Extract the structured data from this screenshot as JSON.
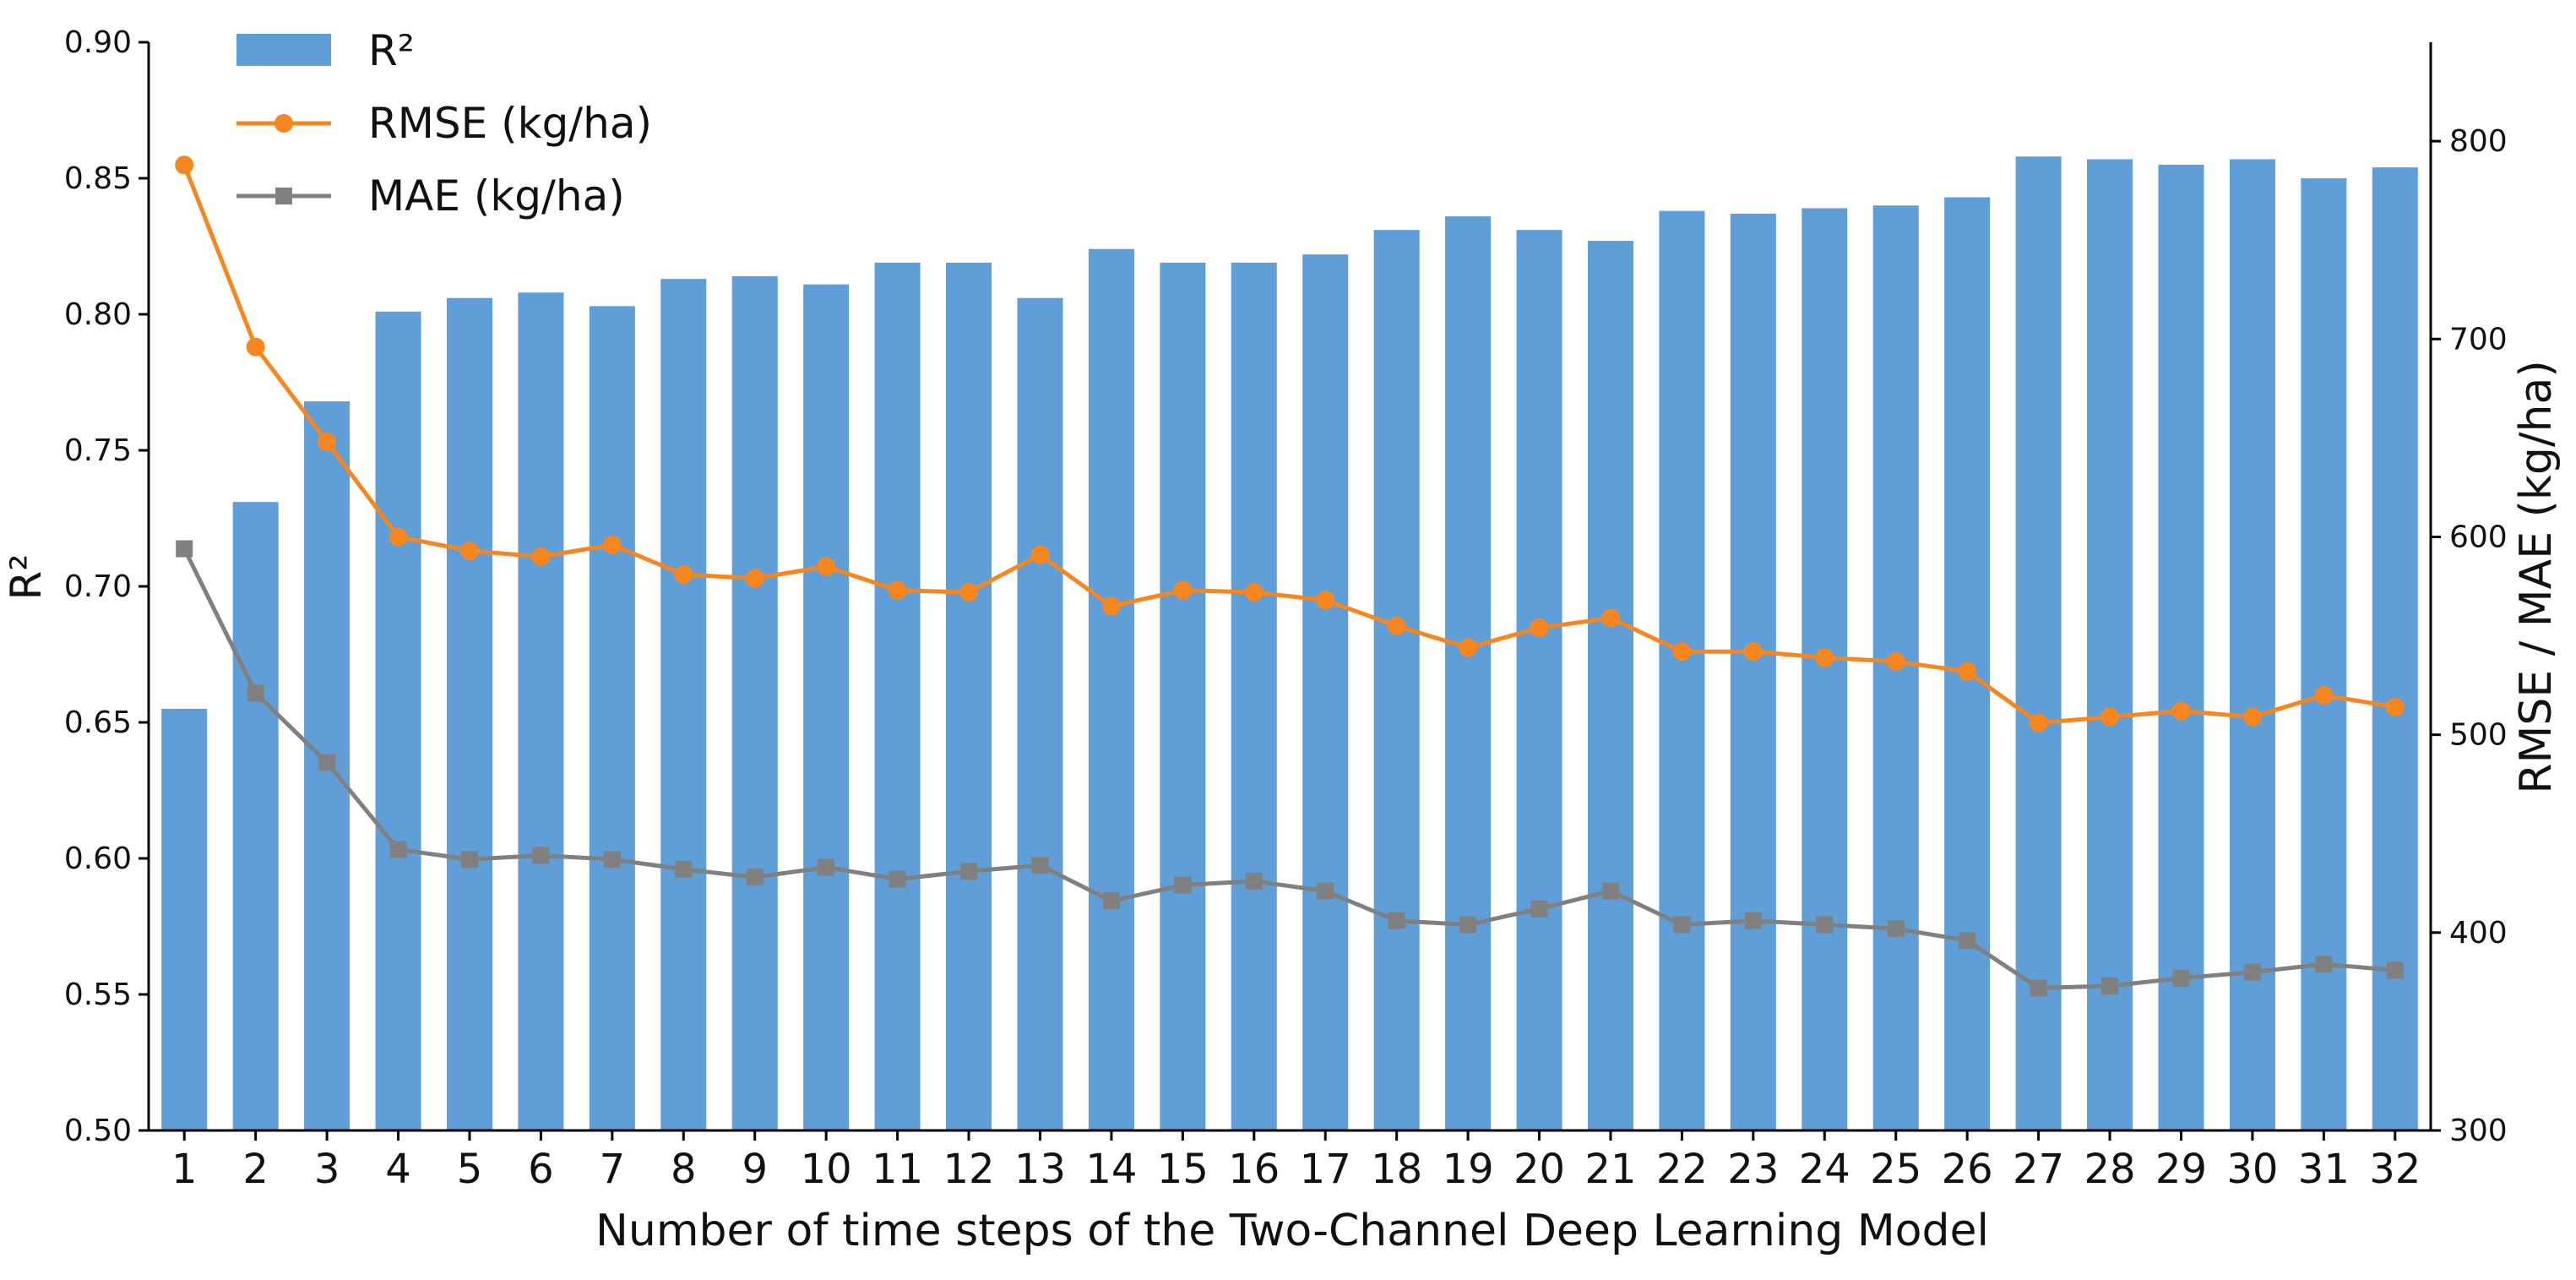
{
  "chart_data": {
    "type": "bar",
    "xlabel": "Number of time steps of the Two-Channel Deep Learning Model",
    "ylabel_left": "R²",
    "ylabel_right": "RMSE / MAE (kg/ha)",
    "ylim_left": [
      0.5,
      0.9
    ],
    "yticks_left": [
      "0.50",
      "0.55",
      "0.60",
      "0.65",
      "0.70",
      "0.75",
      "0.80",
      "0.85",
      "0.90"
    ],
    "ylim_right": [
      300,
      850
    ],
    "yticks_right": [
      "300",
      "400",
      "500",
      "600",
      "700",
      "800"
    ],
    "categories": [
      "1",
      "2",
      "3",
      "4",
      "5",
      "6",
      "7",
      "8",
      "9",
      "10",
      "11",
      "12",
      "13",
      "14",
      "15",
      "16",
      "17",
      "18",
      "19",
      "20",
      "21",
      "22",
      "23",
      "24",
      "25",
      "26",
      "27",
      "28",
      "29",
      "30",
      "31",
      "32"
    ],
    "grid": false,
    "legend_position": "top-left",
    "series": [
      {
        "name": "R²",
        "type": "bar",
        "axis": "left",
        "color": "#5f9ed7",
        "values": [
          0.655,
          0.731,
          0.768,
          0.801,
          0.806,
          0.808,
          0.803,
          0.813,
          0.814,
          0.811,
          0.819,
          0.819,
          0.806,
          0.824,
          0.819,
          0.819,
          0.822,
          0.831,
          0.836,
          0.831,
          0.827,
          0.838,
          0.837,
          0.839,
          0.84,
          0.843,
          0.858,
          0.857,
          0.855,
          0.857,
          0.85,
          0.854
        ]
      },
      {
        "name": "RMSE (kg/ha)",
        "type": "line",
        "axis": "right",
        "marker": "circle",
        "color": "#f58620",
        "values": [
          788,
          696,
          648,
          600,
          593,
          590,
          596,
          581,
          579,
          585,
          573,
          572,
          591,
          565,
          573,
          572,
          568,
          555,
          544,
          554,
          559,
          542,
          542,
          539,
          537,
          532,
          506,
          509,
          512,
          509,
          520,
          514
        ]
      },
      {
        "name": "MAE (kg/ha)",
        "type": "line",
        "axis": "right",
        "marker": "square",
        "color": "#808080",
        "values": [
          594,
          521,
          486,
          442,
          437,
          439,
          437,
          432,
          428,
          433,
          427,
          431,
          434,
          416,
          424,
          426,
          421,
          406,
          404,
          412,
          421,
          404,
          406,
          404,
          402,
          396,
          372,
          373,
          377,
          380,
          384,
          381
        ]
      }
    ]
  }
}
